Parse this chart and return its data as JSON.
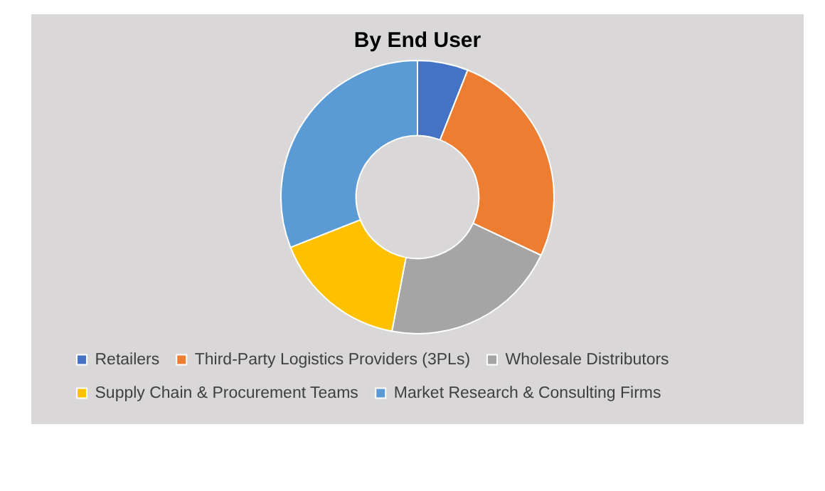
{
  "chart_data": {
    "type": "donut",
    "title": "By End User",
    "categories": [
      "Retailers",
      "Third-Party Logistics Providers (3PLs)",
      "Wholesale Distributors",
      "Supply Chain & Procurement Teams",
      "Market Research & Consulting Firms"
    ],
    "values": [
      6,
      26,
      21,
      16,
      31
    ],
    "colors": [
      "#4472c4",
      "#ed7d31",
      "#a5a5a5",
      "#ffc000",
      "#5b9bd5"
    ],
    "legend": "bottom"
  }
}
